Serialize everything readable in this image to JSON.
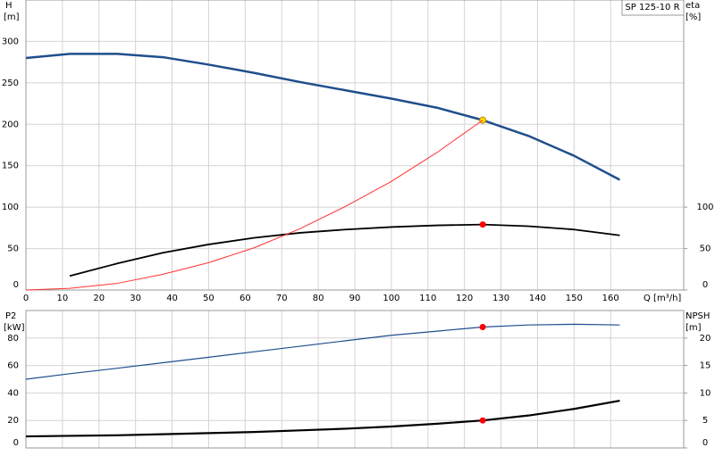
{
  "chart_data": [
    {
      "type": "line",
      "title": "SP 125-10 R",
      "ylabel": "H",
      "yunit": "[m]",
      "y2label": "eta",
      "y2unit": "[%]",
      "xlabel": "Q [m³/h]",
      "xlim": [
        0,
        180
      ],
      "xticks": [
        0,
        10,
        20,
        30,
        40,
        50,
        60,
        70,
        80,
        90,
        100,
        110,
        120,
        130,
        140,
        150,
        160
      ],
      "ylim": [
        0,
        350
      ],
      "yticks": [
        0,
        50,
        100,
        150,
        200,
        250,
        300
      ],
      "y2lim": [
        0,
        350
      ],
      "y2ticks": [
        0,
        50,
        100
      ],
      "grid": true,
      "series": [
        {
          "color": "#1f4e8c",
          "width": 2.5,
          "x": [
            0,
            12,
            25,
            37.5,
            50,
            62.5,
            75,
            87.5,
            100,
            112.5,
            125,
            137.5,
            150,
            162.5
          ],
          "values": [
            280,
            285,
            285,
            281,
            272,
            262,
            251,
            241,
            231,
            220,
            205,
            186,
            162,
            133
          ],
          "markers": [
            {
              "x": 125,
              "y": 205,
              "color": "#ffe100"
            }
          ]
        },
        {
          "color": "#000000",
          "width": 1.8,
          "axis": "y2",
          "x": [
            12,
            25,
            37.5,
            50,
            62.5,
            75,
            87.5,
            100,
            112.5,
            125,
            137.5,
            150,
            162.5
          ],
          "values": [
            17,
            32,
            45,
            55,
            63,
            69,
            73,
            76,
            78,
            79,
            77,
            73,
            66
          ],
          "markers": [
            {
              "x": 125,
              "y": 79,
              "color": "#ff0000"
            }
          ]
        },
        {
          "color": "#ff3030",
          "width": 1,
          "x": [
            0,
            12,
            25,
            37.5,
            50,
            62.5,
            75,
            87.5,
            100,
            112.5,
            125
          ],
          "values": [
            0,
            2,
            8,
            19,
            33,
            51,
            74,
            101,
            131,
            166,
            205
          ]
        }
      ]
    },
    {
      "type": "line",
      "ylabel": "P2",
      "yunit": "[kW]",
      "y2label": "NPSH",
      "y2unit": "[m]",
      "xlim": [
        0,
        180
      ],
      "ylim": [
        0,
        100
      ],
      "yticks": [
        0,
        20,
        40,
        60,
        80
      ],
      "y2lim": [
        0,
        25
      ],
      "y2ticks": [
        0,
        5,
        10,
        15,
        20
      ],
      "grid": true,
      "series": [
        {
          "color": "#1f4e8c",
          "width": 1.2,
          "x": [
            0,
            12,
            25,
            37.5,
            50,
            62.5,
            75,
            87.5,
            100,
            112.5,
            125,
            137.5,
            150,
            162.5
          ],
          "values": [
            50,
            54,
            58,
            62,
            66,
            70,
            74,
            78,
            82,
            85,
            88,
            89.5,
            90,
            89.5
          ],
          "markers": [
            {
              "x": 125,
              "y": 88,
              "color": "#ff0000"
            }
          ]
        },
        {
          "color": "#000000",
          "width": 2.2,
          "axis": "y2",
          "x": [
            0,
            12,
            25,
            37.5,
            50,
            62.5,
            75,
            87.5,
            100,
            112.5,
            125,
            137.5,
            150,
            162.5
          ],
          "values": [
            2.1,
            2.2,
            2.3,
            2.5,
            2.7,
            2.9,
            3.2,
            3.5,
            3.9,
            4.4,
            5.0,
            5.9,
            7.1,
            8.6
          ],
          "markers": [
            {
              "x": 125,
              "y": 5.0,
              "color": "#ff0000"
            }
          ]
        }
      ]
    }
  ]
}
